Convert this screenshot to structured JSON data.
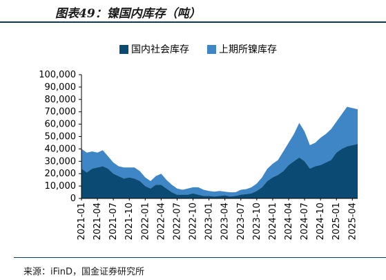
{
  "header": {
    "title": "图表49：镍国内库存（吨）"
  },
  "legend": [
    {
      "label": "国内社会库存",
      "color": "#0b4a72"
    },
    {
      "label": "上期所镍库存",
      "color": "#3f86c6"
    }
  ],
  "footer": {
    "source": "来源：iFinD，国金证券研究所"
  },
  "chart_data": {
    "type": "area",
    "stacked": true,
    "title": "图表49：镍国内库存（吨）",
    "xlabel": "",
    "ylabel": "",
    "ylim": [
      0,
      100000
    ],
    "yticks": [
      0,
      10000,
      20000,
      30000,
      40000,
      50000,
      60000,
      70000,
      80000,
      90000,
      100000
    ],
    "ytick_labels": [
      "0",
      "10,000",
      "20,000",
      "30,000",
      "40,000",
      "50,000",
      "60,000",
      "70,000",
      "80,000",
      "90,000",
      "100,000"
    ],
    "xtick_labels": [
      "2021-01",
      "2021-04",
      "2021-07",
      "2021-10",
      "2022-01",
      "2022-04",
      "2022-07",
      "2022-10",
      "2023-01",
      "2023-04",
      "2023-07",
      "2023-10",
      "2024-01",
      "2024-04",
      "2024-07",
      "2024-10",
      "2025-01",
      "2025-04"
    ],
    "x": [
      "2021-01",
      "2021-02",
      "2021-03",
      "2021-04",
      "2021-05",
      "2021-06",
      "2021-07",
      "2021-08",
      "2021-09",
      "2021-10",
      "2021-11",
      "2021-12",
      "2022-01",
      "2022-02",
      "2022-03",
      "2022-04",
      "2022-05",
      "2022-06",
      "2022-07",
      "2022-08",
      "2022-09",
      "2022-10",
      "2022-11",
      "2022-12",
      "2023-01",
      "2023-02",
      "2023-03",
      "2023-04",
      "2023-05",
      "2023-06",
      "2023-07",
      "2023-08",
      "2023-09",
      "2023-10",
      "2023-11",
      "2023-12",
      "2024-01",
      "2024-02",
      "2024-03",
      "2024-04",
      "2024-05",
      "2024-06",
      "2024-07",
      "2024-08",
      "2024-09",
      "2024-10",
      "2024-11",
      "2024-12",
      "2025-01",
      "2025-02",
      "2025-03",
      "2025-04",
      "2025-05"
    ],
    "grid": false,
    "legend_position": "top",
    "series": [
      {
        "name": "国内社会库存",
        "color": "#0b4a72",
        "values": [
          24000,
          21000,
          24000,
          25000,
          26000,
          24000,
          20000,
          18000,
          16000,
          17000,
          16000,
          14000,
          10000,
          8000,
          11000,
          11000,
          8000,
          5000,
          3000,
          3000,
          3000,
          4000,
          3000,
          2000,
          2000,
          1500,
          2000,
          2500,
          1500,
          2000,
          3000,
          3500,
          4000,
          6000,
          9000,
          14000,
          17000,
          19000,
          22000,
          27000,
          30000,
          33000,
          30000,
          24000,
          26000,
          27000,
          29000,
          31000,
          37000,
          40000,
          42000,
          43000,
          44000
        ]
      },
      {
        "name": "上期所镍库存",
        "color": "#3f86c6",
        "values": [
          16000,
          16000,
          14000,
          12000,
          13000,
          10000,
          9000,
          8000,
          9000,
          8000,
          9000,
          8000,
          7000,
          6000,
          7000,
          9000,
          7000,
          6000,
          5000,
          4000,
          5000,
          5000,
          6000,
          5000,
          4000,
          4000,
          4000,
          3000,
          3500,
          3000,
          4000,
          4000,
          5000,
          6000,
          8000,
          10000,
          11000,
          12000,
          16000,
          18000,
          22000,
          28000,
          24000,
          19000,
          19000,
          22000,
          23000,
          25000,
          25000,
          28000,
          32000,
          30000,
          28000
        ]
      }
    ]
  }
}
